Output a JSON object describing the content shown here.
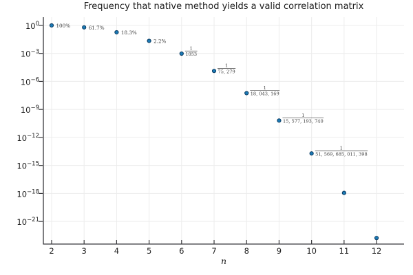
{
  "chart_data": {
    "type": "scatter",
    "title": "Frequency that native method yields a valid correlation matrix",
    "xlabel": "n",
    "ylabel": "",
    "x": [
      2,
      3,
      4,
      5,
      6,
      7,
      8,
      9,
      10,
      11,
      12
    ],
    "y": [
      1.0,
      0.617,
      0.183,
      0.022,
      0.0009497,
      1.3284e-05,
      5.5423e-08,
      6.4196e-11,
      1.9391e-14,
      1.15e-18,
      1.7e-23
    ],
    "point_labels": [
      {
        "type": "text",
        "text": "100%"
      },
      {
        "type": "text",
        "text": "61.7%"
      },
      {
        "type": "text",
        "text": "18.3%"
      },
      {
        "type": "text",
        "text": "2.2%"
      },
      {
        "type": "fraction",
        "numerator": "1",
        "denominator": "1053"
      },
      {
        "type": "fraction",
        "numerator": "1",
        "denominator": "75, 279"
      },
      {
        "type": "fraction",
        "numerator": "1",
        "denominator": "18, 043, 169"
      },
      {
        "type": "fraction",
        "numerator": "1",
        "denominator": "15, 577, 193, 740"
      },
      {
        "type": "fraction",
        "numerator": "1",
        "denominator": "51, 569, 685, 011, 398"
      },
      null,
      null
    ],
    "xticks": [
      2,
      3,
      4,
      5,
      6,
      7,
      8,
      9,
      10,
      11,
      12
    ],
    "ytick_exponents": [
      0,
      -3,
      -6,
      -9,
      -12,
      -15,
      -18,
      -21
    ],
    "xlim": [
      1.746,
      12.846
    ],
    "ylim_exponents": [
      -23.42,
      0.88
    ],
    "grid": true,
    "legend": false,
    "colors": {
      "marker_fill": "#1b7ab5",
      "marker_stroke": "#0a3a61",
      "grid": "#ececec",
      "axis": "#36363a",
      "tick_label": "#212121",
      "title": "#1a1a1a",
      "annotation": "#3d3d3d",
      "background": "#ffffff"
    }
  }
}
